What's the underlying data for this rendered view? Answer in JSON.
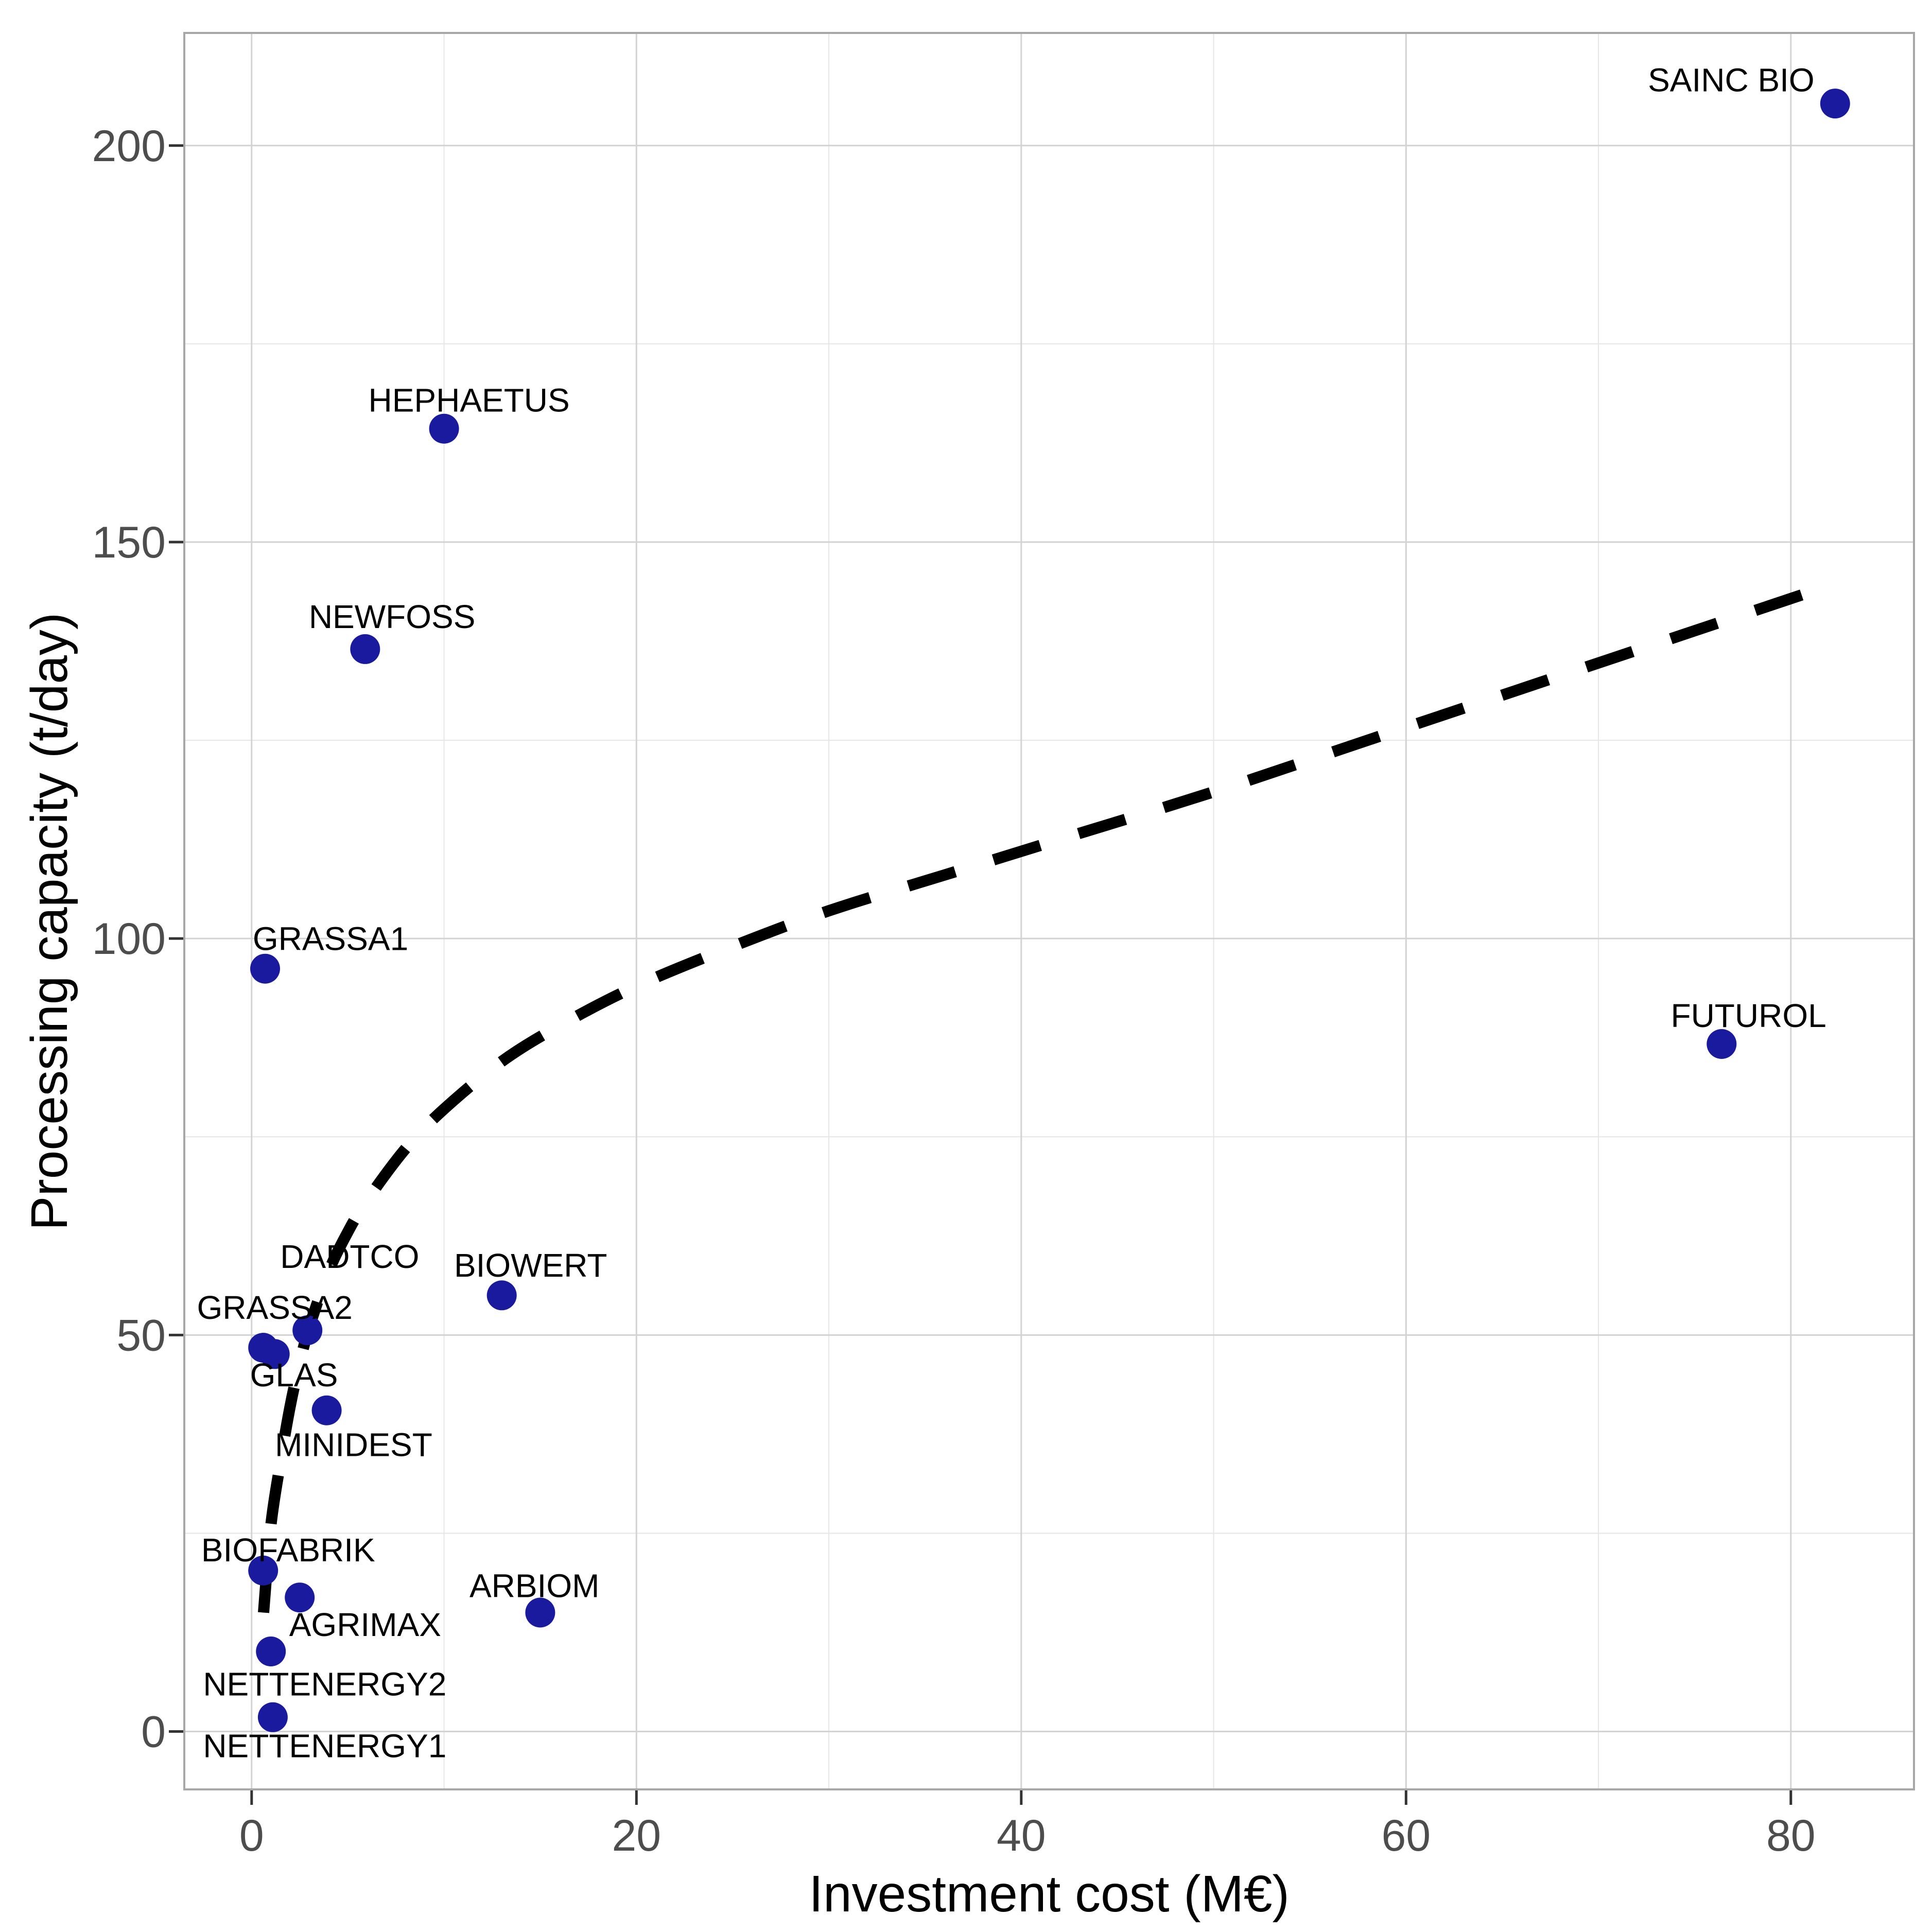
{
  "colors": {
    "background": "#ffffff",
    "panel_background": "#ffffff",
    "panel_border": "#a8a8a8",
    "grid_major": "#d3d3d3",
    "grid_minor": "#e6e6e6",
    "tick_mark": "#333333",
    "tick_label": "#4d4d4d",
    "axis_title": "#000000",
    "point": "#1a1a9e",
    "point_label": "#000000",
    "trend": "#000000"
  },
  "chart_data": {
    "type": "scatter",
    "title": "",
    "xlabel": "Investment cost (M€)",
    "ylabel": "Processing capacity (t/day)",
    "legend": false,
    "grid": true,
    "xlim": [
      -3.5,
      86.4
    ],
    "ylim": [
      -7.3,
      214.2
    ],
    "x_ticks": [
      {
        "value": 0,
        "label": "0"
      },
      {
        "value": 20,
        "label": "20"
      },
      {
        "value": 40,
        "label": "40"
      },
      {
        "value": 60,
        "label": "60"
      },
      {
        "value": 80,
        "label": "80"
      }
    ],
    "y_ticks": [
      {
        "value": 0,
        "label": "0"
      },
      {
        "value": 50,
        "label": "50"
      },
      {
        "value": 100,
        "label": "100"
      },
      {
        "value": 150,
        "label": "150"
      },
      {
        "value": 200,
        "label": "200"
      }
    ],
    "x_minor_ticks": [
      10,
      30,
      50,
      70
    ],
    "y_minor_ticks": [
      25,
      75,
      125,
      175
    ],
    "marker": "circle",
    "point_radius_px": 29,
    "points": [
      {
        "name": "SAINC BIO",
        "x": 82.3,
        "y": 205.3,
        "label_x": 76.9,
        "label_y": 208.3
      },
      {
        "name": "HEPHAETUS",
        "x": 10.0,
        "y": 164.3,
        "label_x": 11.3,
        "label_y": 167.9
      },
      {
        "name": "NEWFOSS",
        "x": 5.9,
        "y": 136.5,
        "label_x": 7.3,
        "label_y": 140.6
      },
      {
        "name": "GRASSA1",
        "x": 0.7,
        "y": 96.2,
        "label_x": 4.1,
        "label_y": 100.0
      },
      {
        "name": "FUTUROL",
        "x": 76.4,
        "y": 86.7,
        "label_x": 77.8,
        "label_y": 90.3
      },
      {
        "name": "BIOWERT",
        "x": 13.0,
        "y": 55.0,
        "label_x": 14.5,
        "label_y": 58.8
      },
      {
        "name": "DADTCO",
        "x": 2.9,
        "y": 50.6,
        "label_x": 5.1,
        "label_y": 59.9
      },
      {
        "name": "GRASSA2",
        "x": 0.6,
        "y": 48.4,
        "label_x": 1.2,
        "label_y": 53.5
      },
      {
        "name": "GLAS",
        "x": 1.2,
        "y": 47.6,
        "label_x": 2.2,
        "label_y": 45.0
      },
      {
        "name": "MINIDEST",
        "x": 3.9,
        "y": 40.5,
        "label_x": 5.3,
        "label_y": 36.2
      },
      {
        "name": "BIOFABRIK",
        "x": 0.6,
        "y": 20.3,
        "label_x": 1.9,
        "label_y": 22.9
      },
      {
        "name": "AGRIMAX",
        "x": 2.5,
        "y": 16.9,
        "label_x": 5.9,
        "label_y": 13.5
      },
      {
        "name": "ARBIOM",
        "x": 15.0,
        "y": 15.0,
        "label_x": 14.7,
        "label_y": 18.4
      },
      {
        "name": "NETTENERGY2",
        "x": 1.0,
        "y": 10.1,
        "label_x": 3.8,
        "label_y": 6.0
      },
      {
        "name": "NETTENERGY1",
        "x": 1.1,
        "y": 1.8,
        "label_x": 3.8,
        "label_y": -1.8
      }
    ],
    "trend_line": {
      "style": "dashed",
      "description": "monotone increasing smooth fit, steep at low x then flattening",
      "x_range": [
        0.62,
        82
      ],
      "control_points": [
        [
          0.62,
          15
        ],
        [
          1,
          26
        ],
        [
          1.5,
          34
        ],
        [
          2,
          41
        ],
        [
          2.5,
          46.5
        ],
        [
          3,
          51
        ],
        [
          4,
          58
        ],
        [
          5,
          63
        ],
        [
          6,
          67
        ],
        [
          8,
          73.5
        ],
        [
          10,
          78.5
        ],
        [
          13,
          84.5
        ],
        [
          16,
          89
        ],
        [
          20,
          94
        ],
        [
          25,
          99
        ],
        [
          30,
          103.5
        ],
        [
          36,
          108
        ],
        [
          42,
          112.5
        ],
        [
          50,
          118.5
        ],
        [
          58,
          125
        ],
        [
          66,
          131.5
        ],
        [
          74,
          138
        ],
        [
          82,
          144.5
        ]
      ]
    }
  }
}
